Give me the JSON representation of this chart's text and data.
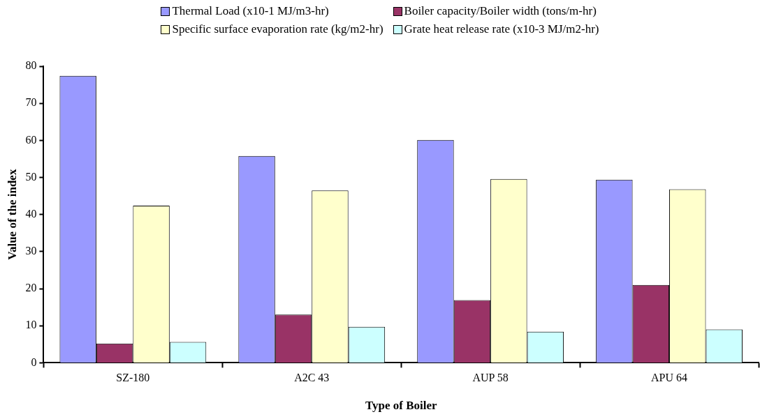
{
  "chart_data": {
    "type": "bar",
    "xlabel": "Type of Boiler",
    "ylabel": "Value of the index",
    "categories": [
      "SZ-180",
      "A2C 43",
      "AUP 58",
      "APU 64"
    ],
    "series": [
      {
        "name": "Thermal Load (x10-1 MJ/m3-hr)",
        "color": "#9999ff",
        "values": [
          77.4,
          55.8,
          60.1,
          49.4
        ]
      },
      {
        "name": "Boiler capacity/Boiler width (tons/m-hr)",
        "color": "#993366",
        "values": [
          5.2,
          13.0,
          16.9,
          21.0
        ]
      },
      {
        "name": "Specific surface evaporation rate (kg/m2-hr)",
        "color": "#ffffcc",
        "values": [
          42.4,
          46.5,
          49.6,
          46.8
        ]
      },
      {
        "name": "Grate heat release rate (x10-3 MJ/m2-hr)",
        "color": "#ccffff",
        "values": [
          5.6,
          9.7,
          8.4,
          9.0
        ]
      }
    ],
    "ylim": [
      0,
      80
    ],
    "yticks": [
      0,
      10,
      20,
      30,
      40,
      50,
      60,
      70,
      80
    ],
    "grid": false,
    "legend": "top"
  }
}
